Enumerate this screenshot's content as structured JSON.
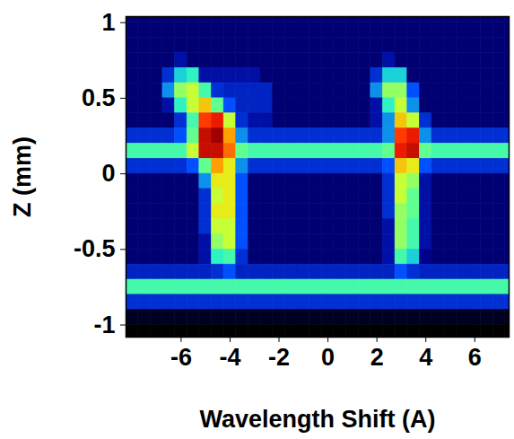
{
  "chart_data": {
    "type": "heatmap",
    "x_label": "Wavelength Shift (A)",
    "y_label": "Z (mm)",
    "xlim": [
      -8.25,
      7.4
    ],
    "ylim": [
      -1.08,
      1.04
    ],
    "xticks": [
      -6,
      -4,
      -2,
      0,
      2,
      4,
      6
    ],
    "yticks": [
      1,
      0.5,
      0,
      -0.5,
      -1
    ],
    "x": [
      -8,
      -7.5,
      -7,
      -6.5,
      -6,
      -5.5,
      -5,
      -4.5,
      -4,
      -3.5,
      -3,
      -2.5,
      -2,
      -1.5,
      -1,
      -0.5,
      0,
      0.5,
      1,
      1.5,
      2,
      2.5,
      3,
      3.5,
      4,
      4.5,
      5,
      5.5,
      6,
      6.5,
      7,
      7.5
    ],
    "y": [
      1.05,
      0.95,
      0.85,
      0.75,
      0.65,
      0.55,
      0.45,
      0.35,
      0.25,
      0.15,
      0.05,
      -0.05,
      -0.15,
      -0.25,
      -0.35,
      -0.45,
      -0.55,
      -0.65,
      -0.75,
      -0.85,
      -0.95,
      -1.05
    ],
    "values": [
      [
        1,
        1,
        1,
        1,
        1,
        1,
        1,
        1,
        1,
        1,
        1,
        1,
        1,
        1,
        1,
        1,
        1,
        1,
        1,
        1,
        1,
        1,
        1,
        1,
        1,
        1,
        1,
        1,
        1,
        1,
        1,
        1
      ],
      [
        1,
        1,
        1,
        1,
        1,
        1,
        1,
        1,
        1,
        1,
        1,
        1,
        1,
        1,
        1,
        1,
        1,
        1,
        1,
        1,
        1,
        1,
        1,
        1,
        1,
        1,
        1,
        1,
        1,
        1,
        1,
        1
      ],
      [
        1,
        1,
        1,
        1,
        1,
        1,
        1,
        1,
        1,
        1,
        1,
        1,
        1,
        1,
        1,
        1,
        1,
        1,
        1,
        1,
        1,
        1,
        1,
        1,
        1,
        1,
        1,
        1,
        1,
        1,
        1,
        1
      ],
      [
        1,
        1,
        1,
        1,
        1.5,
        1,
        1,
        1,
        1,
        1,
        1,
        1,
        1,
        1,
        1,
        1,
        1,
        1,
        1,
        1,
        1,
        1.5,
        1,
        1,
        1,
        1,
        1,
        1,
        1,
        1,
        1,
        1
      ],
      [
        1,
        1,
        1,
        2,
        3.5,
        4,
        1.5,
        1.5,
        1.5,
        1.5,
        1.5,
        1,
        1,
        1,
        1,
        1,
        1,
        1,
        1,
        1,
        2,
        3.5,
        3.5,
        1,
        1,
        1,
        1,
        1,
        1,
        1,
        1,
        1
      ],
      [
        1,
        1,
        1,
        3,
        5.5,
        6,
        4.5,
        2,
        1.8,
        1.8,
        1.8,
        1.8,
        1,
        1,
        1,
        1,
        1,
        1,
        1,
        1,
        3,
        5.5,
        5.5,
        2.5,
        1,
        1,
        1,
        1,
        1,
        1,
        1,
        1
      ],
      [
        1,
        1,
        1,
        1.5,
        4,
        6,
        7,
        5,
        2.5,
        1.8,
        1.8,
        1.8,
        1,
        1,
        1,
        1,
        1,
        1,
        1,
        1,
        1.5,
        4,
        6,
        3,
        1,
        1,
        1,
        1,
        1,
        1,
        1,
        1
      ],
      [
        1,
        1,
        1,
        1,
        2,
        4.5,
        8.5,
        9,
        6,
        2,
        1.5,
        1.5,
        1,
        1,
        1,
        1,
        1,
        1,
        1,
        1,
        1.5,
        3,
        7,
        6,
        2,
        1,
        1,
        1,
        1,
        1,
        1,
        1
      ],
      [
        2,
        2,
        2,
        2,
        2.5,
        5,
        9.5,
        10,
        7.5,
        3,
        2,
        2,
        2,
        2,
        2,
        2,
        2,
        2,
        2,
        2,
        2,
        3,
        8.5,
        9,
        3,
        2,
        2,
        2,
        2,
        2,
        2,
        2
      ],
      [
        4.5,
        4.5,
        4.5,
        4.5,
        4.5,
        6,
        9.5,
        9.5,
        8,
        5,
        4.5,
        4.5,
        4.5,
        4.5,
        4.5,
        4.5,
        4.5,
        4.5,
        4.5,
        4.5,
        4.5,
        5,
        9,
        9.5,
        5,
        4.5,
        4.5,
        4.5,
        4.5,
        4.5,
        4.5,
        4.5
      ],
      [
        2,
        2,
        2,
        2,
        2,
        2.5,
        5,
        7.5,
        6.5,
        3,
        2,
        2,
        2,
        2,
        2,
        2,
        2,
        2,
        2,
        2,
        2,
        2.5,
        7,
        6.5,
        2.5,
        2,
        2,
        2,
        2,
        2,
        2,
        2
      ],
      [
        1,
        1,
        1,
        1,
        1,
        1,
        3,
        6.5,
        6.5,
        2.5,
        1,
        1,
        1,
        1,
        1,
        1,
        1,
        1,
        1,
        1,
        1,
        2,
        6,
        5.5,
        1.5,
        1,
        1,
        1,
        1,
        1,
        1,
        1
      ],
      [
        1,
        1,
        1,
        1,
        1,
        1,
        2,
        6,
        6.5,
        2.5,
        1,
        1,
        1,
        1,
        1,
        1,
        1,
        1,
        1,
        1,
        1,
        2,
        6,
        5,
        1.5,
        1,
        1,
        1,
        1,
        1,
        1,
        1
      ],
      [
        1,
        1,
        1,
        1,
        1,
        1,
        2,
        6.5,
        6.5,
        2.5,
        1,
        1,
        1,
        1,
        1,
        1,
        1,
        1,
        1,
        1,
        1,
        2,
        5.5,
        5,
        1.5,
        1,
        1,
        1,
        1,
        1,
        1,
        1
      ],
      [
        1,
        1,
        1,
        1,
        1,
        1,
        2,
        6,
        6,
        2.5,
        1,
        1,
        1,
        1,
        1,
        1,
        1,
        1,
        1,
        1,
        1,
        1.5,
        5.5,
        4.5,
        1.5,
        1,
        1,
        1,
        1,
        1,
        1,
        1
      ],
      [
        1,
        1,
        1,
        1,
        1,
        1,
        1.5,
        5.5,
        6,
        2.5,
        1,
        1,
        1,
        1,
        1,
        1,
        1,
        1,
        1,
        1,
        1,
        1.5,
        5.5,
        4.5,
        1.5,
        1,
        1,
        1,
        1,
        1,
        1,
        1
      ],
      [
        1,
        1,
        1,
        1,
        1,
        1,
        1.5,
        4,
        4.5,
        2,
        1,
        1,
        1,
        1,
        1,
        1,
        1,
        1,
        1,
        1,
        1,
        1.5,
        4.5,
        3.5,
        1.2,
        1,
        1,
        1,
        1,
        1,
        1,
        1
      ],
      [
        1.8,
        1.8,
        1.8,
        1.8,
        1.8,
        1.8,
        1.8,
        2,
        2.5,
        1.8,
        1.8,
        1.8,
        1.8,
        1.8,
        1.8,
        1.8,
        1.8,
        1.8,
        1.8,
        1.8,
        1.8,
        1.8,
        2.5,
        2,
        1.8,
        1.8,
        1.8,
        1.8,
        1.8,
        1.8,
        1.8,
        1.8
      ],
      [
        4.5,
        4.5,
        4.5,
        4.5,
        4.5,
        4.5,
        4.5,
        4.5,
        4.5,
        4.5,
        4.5,
        4.5,
        4.5,
        4.5,
        4.5,
        4.5,
        4.5,
        4.5,
        4.5,
        4.5,
        4.5,
        4.5,
        4.5,
        4.5,
        4.5,
        4.5,
        4.5,
        4.5,
        4.5,
        4.5,
        4.5,
        4.5
      ],
      [
        2,
        2,
        2,
        2,
        2,
        2,
        2,
        2,
        2,
        2,
        2,
        2,
        2,
        2,
        2,
        2,
        2,
        2,
        2,
        2,
        2,
        2,
        2,
        2,
        2,
        2,
        2,
        2,
        2,
        2,
        2,
        2
      ],
      [
        0.3,
        0.3,
        0.3,
        0.3,
        0.3,
        0.3,
        0.3,
        0.3,
        0.3,
        0.3,
        0.3,
        0.3,
        0.3,
        0.3,
        0.3,
        0.3,
        0.3,
        0.3,
        0.3,
        0.3,
        0.3,
        0.3,
        0.3,
        0.3,
        0.3,
        0.3,
        0.3,
        0.3,
        0.3,
        0.3,
        0.3,
        0.3
      ],
      [
        0,
        0,
        0,
        0,
        0,
        0,
        0,
        0,
        0,
        0,
        0,
        0,
        0,
        0,
        0,
        0,
        0,
        0,
        0,
        0,
        0,
        0,
        0,
        0,
        0,
        0,
        0,
        0,
        0,
        0,
        0,
        0
      ]
    ]
  }
}
